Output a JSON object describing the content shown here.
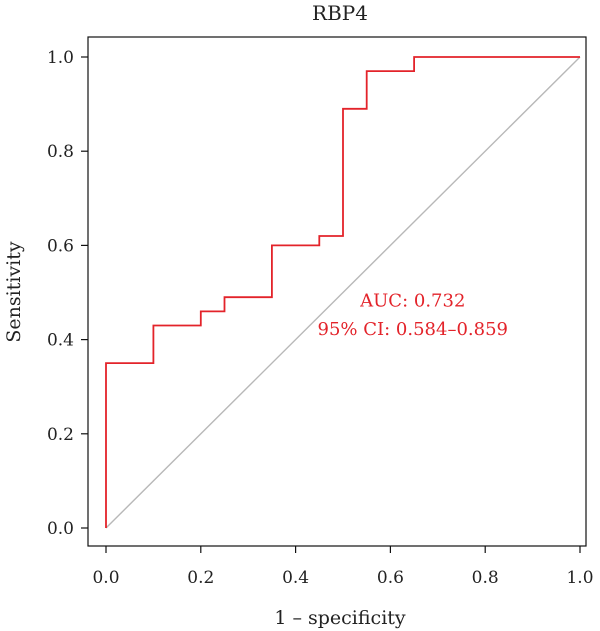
{
  "chart_data": {
    "type": "line",
    "title": "RBP4",
    "xlabel": "1 – specificity",
    "ylabel": "Sensitivity",
    "xlim": [
      0.0,
      1.0
    ],
    "ylim": [
      0.0,
      1.0
    ],
    "xticks": [
      "0.0",
      "0.2",
      "0.4",
      "0.6",
      "0.8",
      "1.0"
    ],
    "yticks": [
      "0.0",
      "0.2",
      "0.4",
      "0.6",
      "0.8",
      "1.0"
    ],
    "series": [
      {
        "color": "#e3232a",
        "x": [
          0.0,
          0.0,
          0.1,
          0.1,
          0.2,
          0.2,
          0.25,
          0.25,
          0.35,
          0.35,
          0.45,
          0.45,
          0.5,
          0.5,
          0.55,
          0.55,
          0.65,
          0.65,
          1.0
        ],
        "y": [
          0.0,
          0.35,
          0.35,
          0.43,
          0.43,
          0.46,
          0.46,
          0.49,
          0.49,
          0.6,
          0.6,
          0.62,
          0.62,
          0.89,
          0.89,
          0.97,
          0.97,
          1.0,
          1.0
        ]
      }
    ],
    "reference_line": {
      "color": "#b8b8b8",
      "x": [
        0.0,
        1.0
      ],
      "y": [
        0.0,
        1.0
      ]
    },
    "annotations": [
      {
        "text": "AUC: 0.732",
        "x": 0.47,
        "y": 0.485,
        "color": "#e3232a"
      },
      {
        "text": "95% CI: 0.584–0.859",
        "x": 0.47,
        "y": 0.425,
        "color": "#e3232a"
      }
    ],
    "grid": false,
    "legend": "none"
  }
}
